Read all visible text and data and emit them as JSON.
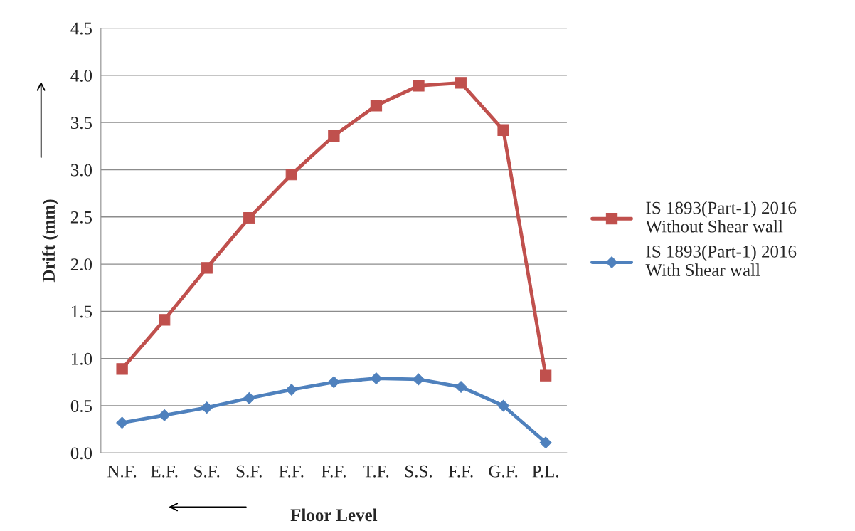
{
  "chart_data": {
    "type": "line",
    "xlabel": "Floor Level",
    "ylabel": "Drift (mm)",
    "categories": [
      "N.F.",
      "E.F.",
      "S.F.",
      "S.F.",
      "F.F.",
      "F.F.",
      "T.F.",
      "S.S.",
      "F.F.",
      "G.F.",
      "P.L."
    ],
    "series": [
      {
        "name": "IS 1893(Part-1) 2016\nWithout Shear wall",
        "color": "#c0504d",
        "marker": "square",
        "values": [
          0.89,
          1.41,
          1.96,
          2.49,
          2.95,
          3.36,
          3.68,
          3.89,
          3.92,
          3.42,
          0.82
        ]
      },
      {
        "name": "IS 1893(Part-1) 2016\nWith Shear wall",
        "color": "#4f81bd",
        "marker": "diamond",
        "values": [
          0.32,
          0.4,
          0.48,
          0.58,
          0.67,
          0.75,
          0.79,
          0.78,
          0.7,
          0.5,
          0.11
        ]
      }
    ],
    "ylim": [
      0,
      4.5
    ],
    "yticks": [
      {
        "value": 0,
        "label": "0.0"
      },
      0.5,
      {
        "value": 1,
        "label": "1.0"
      },
      1.5,
      {
        "value": 2,
        "label": "2.0"
      },
      2.5,
      {
        "value": 3,
        "label": "3.0"
      },
      3.5,
      {
        "value": 4,
        "label": "4.0"
      },
      4.5
    ],
    "grid": "y",
    "legend": "right",
    "line_style": "solid"
  }
}
